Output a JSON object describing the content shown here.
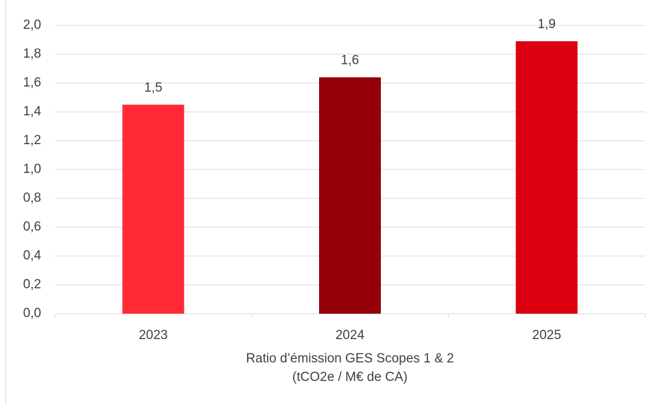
{
  "chart_data": {
    "type": "bar",
    "categories": [
      "2023",
      "2024",
      "2025"
    ],
    "values": [
      1.45,
      1.64,
      1.89
    ],
    "value_labels": [
      "1,5",
      "1,6",
      "1,9"
    ],
    "colors": [
      "#ff2a36",
      "#930007",
      "#dc0010"
    ],
    "x_label": [
      "Ratio d’émission GES Scopes 1 & 2",
      "(tCO2e / M€ de CA)"
    ],
    "ylim": [
      0,
      2
    ],
    "yticks": [
      {
        "value": 0,
        "label": "0,0"
      },
      {
        "value": 0.2,
        "label": "0,2"
      },
      {
        "value": 0.4,
        "label": "0,4"
      },
      {
        "value": 0.6,
        "label": "0,6"
      },
      {
        "value": 0.8,
        "label": "0,8"
      },
      {
        "value": 1.0,
        "label": "1,0"
      },
      {
        "value": 1.2,
        "label": "1,2"
      },
      {
        "value": 1.4,
        "label": "1,4"
      },
      {
        "value": 1.6,
        "label": "1,6"
      },
      {
        "value": 1.8,
        "label": "1,8"
      },
      {
        "value": 2.0,
        "label": "2,0"
      }
    ],
    "grid": true
  }
}
